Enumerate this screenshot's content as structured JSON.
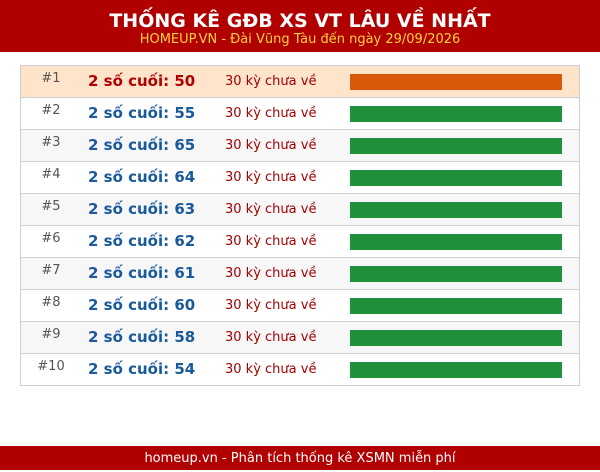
{
  "header": {
    "title": "THỐNG KÊ GĐB XS VT LÂU VỀ NHẤT",
    "subtitle": "HOMEUP.VN - Đài Vũng Tàu đến ngày 29/09/2026"
  },
  "rows": [
    {
      "rank": "#1",
      "label": "2 số cuối: 50",
      "status": "30 kỳ chưa về"
    },
    {
      "rank": "#2",
      "label": "2 số cuối: 55",
      "status": "30 kỳ chưa về"
    },
    {
      "rank": "#3",
      "label": "2 số cuối: 65",
      "status": "30 kỳ chưa về"
    },
    {
      "rank": "#4",
      "label": "2 số cuối: 64",
      "status": "30 kỳ chưa về"
    },
    {
      "rank": "#5",
      "label": "2 số cuối: 63",
      "status": "30 kỳ chưa về"
    },
    {
      "rank": "#6",
      "label": "2 số cuối: 62",
      "status": "30 kỳ chưa về"
    },
    {
      "rank": "#7",
      "label": "2 số cuối: 61",
      "status": "30 kỳ chưa về"
    },
    {
      "rank": "#8",
      "label": "2 số cuối: 60",
      "status": "30 kỳ chưa về"
    },
    {
      "rank": "#9",
      "label": "2 số cuối: 58",
      "status": "30 kỳ chưa về"
    },
    {
      "rank": "#10",
      "label": "2 số cuối: 54",
      "status": "30 kỳ chưa về"
    }
  ],
  "footer": "homeup.vn - Phân tích thống kê XSMN miễn phí"
}
